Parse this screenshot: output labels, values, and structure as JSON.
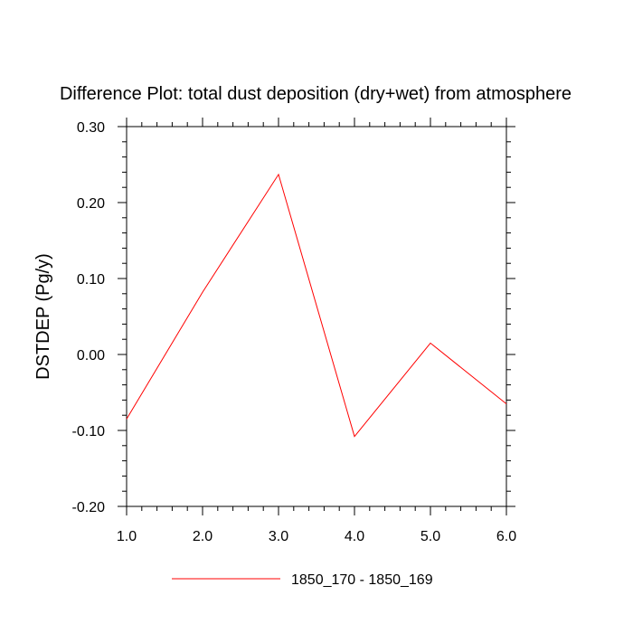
{
  "chart_data": {
    "type": "line",
    "title": "Difference Plot: total dust deposition (dry+wet) from atmosphere",
    "xlabel": "",
    "ylabel": "DSTDEP  (Pg/y)",
    "xlim": [
      1.0,
      6.0
    ],
    "ylim": [
      -0.2,
      0.3
    ],
    "x_ticks": [
      "1.0",
      "2.0",
      "3.0",
      "4.0",
      "5.0",
      "6.0"
    ],
    "y_ticks": [
      "0.30",
      "0.20",
      "0.10",
      "0.00",
      "-0.10",
      "-0.20"
    ],
    "grid": false,
    "legend_position": "bottom",
    "series": [
      {
        "name": "1850_170 - 1850_169",
        "color": "#ff0000",
        "x": [
          1,
          2,
          3,
          4,
          5,
          6
        ],
        "values": [
          -0.085,
          0.082,
          0.237,
          -0.108,
          0.015,
          -0.065
        ]
      }
    ]
  }
}
